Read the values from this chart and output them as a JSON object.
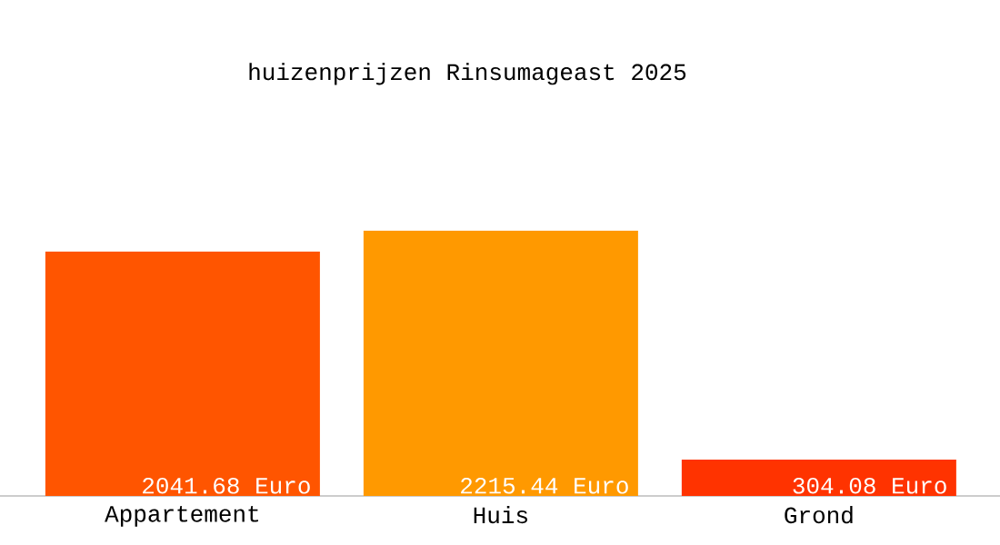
{
  "chart_data": {
    "type": "bar",
    "title": "huizenprijzen Rinsumageast 2025",
    "categories": [
      "Appartement",
      "Huis",
      "Grond"
    ],
    "values": [
      2041.68,
      2215.44,
      304.08
    ],
    "colors": [
      "#ff5500",
      "#ff9900",
      "#ff3300"
    ],
    "value_labels": [
      "2041.68 Euro",
      "2215.44 Euro",
      "304.08 Euro"
    ]
  }
}
